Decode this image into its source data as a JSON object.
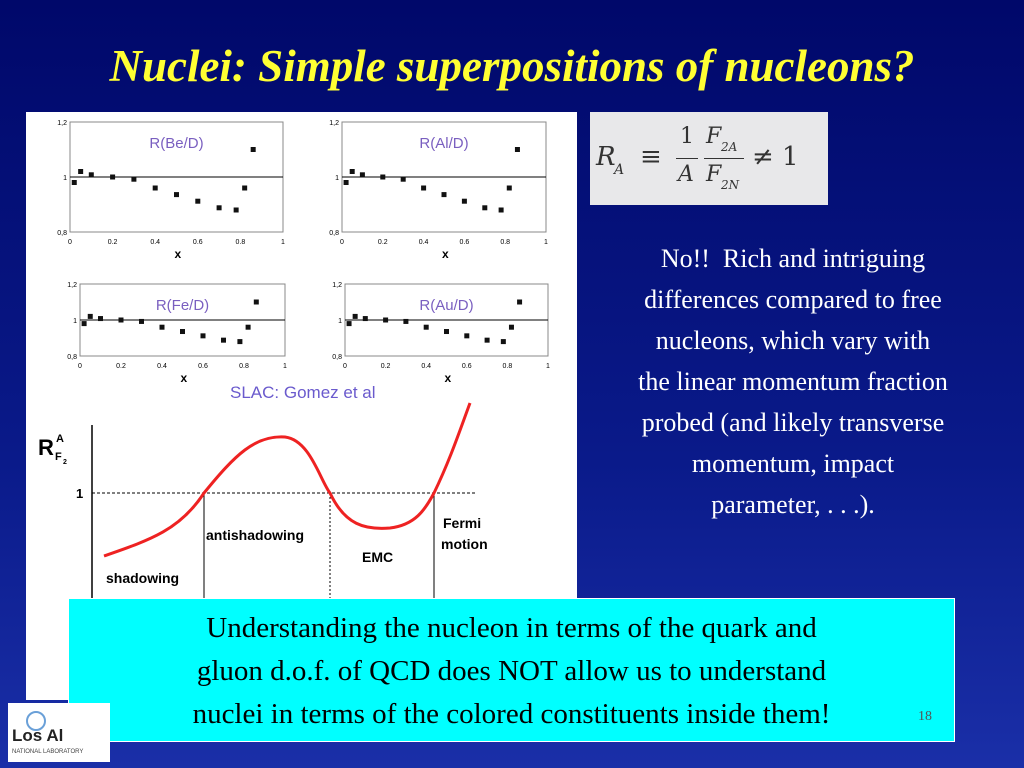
{
  "title": "Nuclei: Simple superpositions of nucleons?",
  "figure": {
    "panels": [
      {
        "label": "R(Be/D)",
        "yticks": [
          "1,2",
          "1",
          "0,8"
        ],
        "xticks": [
          "0",
          "0.2",
          "0.4",
          "0.6",
          "0.8",
          "1"
        ],
        "xlabel": "x"
      },
      {
        "label": "R(Al/D)",
        "yticks": [
          "1,2",
          "1",
          "0,8"
        ],
        "xticks": [
          "0",
          "0.2",
          "0.4",
          "0.6",
          "0.8",
          "1"
        ],
        "xlabel": "x"
      },
      {
        "label": "R(Fe/D)",
        "yticks": [
          "1,2",
          "1",
          "0,8"
        ],
        "xticks": [
          "0",
          "0.2",
          "0.4",
          "0.6",
          "0.8",
          "1"
        ],
        "xlabel": "x"
      },
      {
        "label": "R(Au/D)",
        "yticks": [
          "1,2",
          "1",
          "0,8"
        ],
        "xticks": [
          "0",
          "0.2",
          "0.4",
          "0.6",
          "0.8",
          "1"
        ],
        "xlabel": "x"
      }
    ],
    "credit": "SLAC: Gomez et al",
    "schematic": {
      "ylabel": "R",
      "ylabel_sup": "A",
      "ylabel_sub": "F",
      "ylabel_subsub": "2",
      "one": "1",
      "regions": [
        "shadowing",
        "antishadowing",
        "EMC",
        "Fermi",
        "motion"
      ]
    }
  },
  "formula": {
    "r": "R",
    "r_sub": "A",
    "equiv": "≡",
    "one": "1",
    "a": "A",
    "f_num": "F",
    "f_num_sub": "2A",
    "f_den": "F",
    "f_den_sub": "2N",
    "neq": "≠ 1"
  },
  "text_lines": [
    "No!!  Rich and intriguing",
    "differences compared to free",
    "nucleons, which vary with",
    "the linear momentum fraction",
    "probed (and likely transverse",
    "momentum, impact",
    "parameter, . . .)."
  ],
  "callout_lines": [
    "Understanding the nucleon in terms of the quark and",
    "gluon d.o.f. of QCD does NOT allow us to understand",
    "nuclei in terms of the colored constituents inside them!"
  ],
  "page_number": "18",
  "logo": {
    "name": "Los Al",
    "sub": "NATIONAL LABORATORY"
  }
}
